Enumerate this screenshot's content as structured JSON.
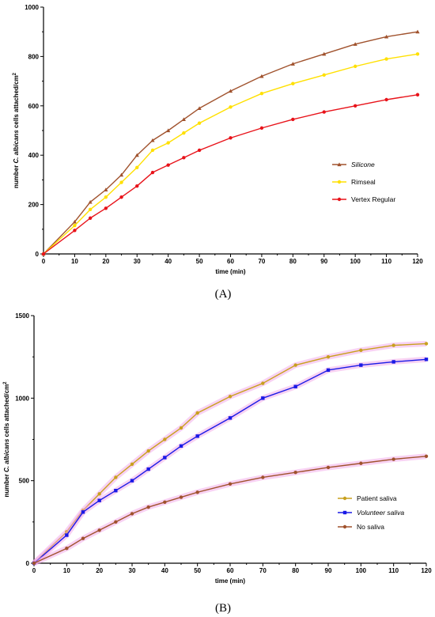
{
  "chart_data": [
    {
      "type": "line",
      "panel_label": "(A)",
      "xlabel": "time (min)",
      "ylabel": "number C. albicans cells attached/cm²",
      "ylabel_parts": {
        "pre": "number ",
        "italic": "C. albicans",
        "post": " cells attached/cm",
        "sup": "2"
      },
      "xlim": [
        0,
        120
      ],
      "ylim": [
        0,
        1000
      ],
      "xticks": [
        0,
        10,
        20,
        30,
        40,
        50,
        60,
        70,
        80,
        90,
        100,
        110,
        120
      ],
      "yticks": [
        0,
        200,
        400,
        600,
        800,
        1000
      ],
      "legend_position": "right-middle",
      "grid": false,
      "x": [
        0,
        10,
        15,
        20,
        25,
        30,
        35,
        40,
        45,
        50,
        60,
        70,
        80,
        90,
        100,
        110,
        120
      ],
      "series": [
        {
          "name": "Silicone",
          "legend_italic": true,
          "color": "#a0522d",
          "marker": "triangle",
          "values": [
            0,
            130,
            210,
            260,
            320,
            400,
            460,
            500,
            545,
            590,
            660,
            720,
            770,
            810,
            850,
            880,
            900
          ]
        },
        {
          "name": "Rimseal",
          "legend_italic": false,
          "color": "#ffe000",
          "marker": "circle",
          "values": [
            0,
            115,
            180,
            230,
            290,
            350,
            420,
            450,
            490,
            530,
            595,
            650,
            690,
            725,
            760,
            790,
            810
          ]
        },
        {
          "name": "Vertex Regular",
          "legend_italic": false,
          "color": "#e8131a",
          "marker": "circle",
          "values": [
            0,
            95,
            145,
            185,
            230,
            275,
            330,
            360,
            390,
            420,
            470,
            510,
            545,
            575,
            600,
            625,
            645
          ]
        }
      ]
    },
    {
      "type": "line",
      "panel_label": "(B)",
      "xlabel": "time (min)",
      "ylabel": "number C. albicans cells attached/cm²",
      "ylabel_parts": {
        "pre": "number ",
        "italic": "C. albicans",
        "post": " cells attached/cm",
        "sup": "2"
      },
      "xlim": [
        0,
        120
      ],
      "ylim": [
        0,
        1500
      ],
      "xticks": [
        0,
        10,
        20,
        30,
        40,
        50,
        60,
        70,
        80,
        90,
        100,
        110,
        120
      ],
      "yticks": [
        0,
        500,
        1000,
        1500
      ],
      "legend_position": "right-lower",
      "grid": false,
      "x": [
        0,
        10,
        15,
        20,
        25,
        30,
        35,
        40,
        45,
        50,
        60,
        70,
        80,
        90,
        100,
        110,
        120
      ],
      "series": [
        {
          "name": "Patient saliva",
          "legend_italic": false,
          "color": "#c8a01e",
          "marker": "circle",
          "values": [
            0,
            190,
            320,
            420,
            520,
            600,
            680,
            750,
            820,
            910,
            1010,
            1090,
            1200,
            1250,
            1290,
            1320,
            1330
          ]
        },
        {
          "name": "Volunteer saliva",
          "legend_italic": true,
          "color": "#1a1ae6",
          "marker": "square",
          "values": [
            0,
            170,
            310,
            380,
            440,
            500,
            570,
            640,
            710,
            770,
            880,
            1000,
            1070,
            1170,
            1200,
            1220,
            1235
          ]
        },
        {
          "name": "No saliva",
          "legend_italic": false,
          "color": "#a0522d",
          "marker": "circle",
          "values": [
            0,
            90,
            150,
            200,
            250,
            300,
            340,
            370,
            400,
            430,
            480,
            520,
            550,
            580,
            605,
            630,
            648
          ]
        }
      ]
    }
  ]
}
